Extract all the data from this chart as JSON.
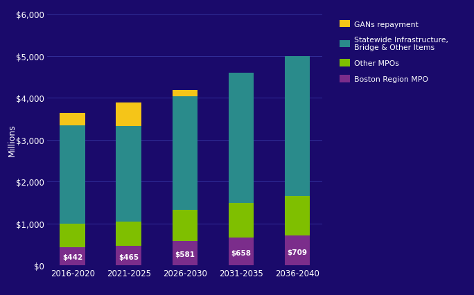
{
  "categories": [
    "2016-2020",
    "2021-2025",
    "2026-2030",
    "2031-2035",
    "2036-2040"
  ],
  "boston_mpo": [
    442,
    465,
    581,
    658,
    709
  ],
  "other_mpos": [
    558,
    580,
    750,
    842,
    941
  ],
  "statewide": [
    2340,
    2280,
    2700,
    3100,
    3350
  ],
  "gans": [
    300,
    560,
    150,
    0,
    0
  ],
  "bar_labels": [
    "$442",
    "$465",
    "$581",
    "$658",
    "$709"
  ],
  "colors": {
    "boston_mpo": "#7B2D8B",
    "other_mpos": "#7FBF00",
    "statewide": "#2A8B8B",
    "gans": "#F5C518"
  },
  "legend_labels": [
    "GANs repayment",
    "Statewide Infrastructure,\nBridge & Other Items",
    "Other MPOs",
    "Boston Region MPO"
  ],
  "ylabel": "Millions",
  "ylim": [
    0,
    6000
  ],
  "yticks": [
    0,
    1000,
    2000,
    3000,
    4000,
    5000,
    6000
  ],
  "background_color": "#1a0a6b",
  "text_color": "#ffffff",
  "grid_color": "#3535a0",
  "bar_width": 0.45
}
